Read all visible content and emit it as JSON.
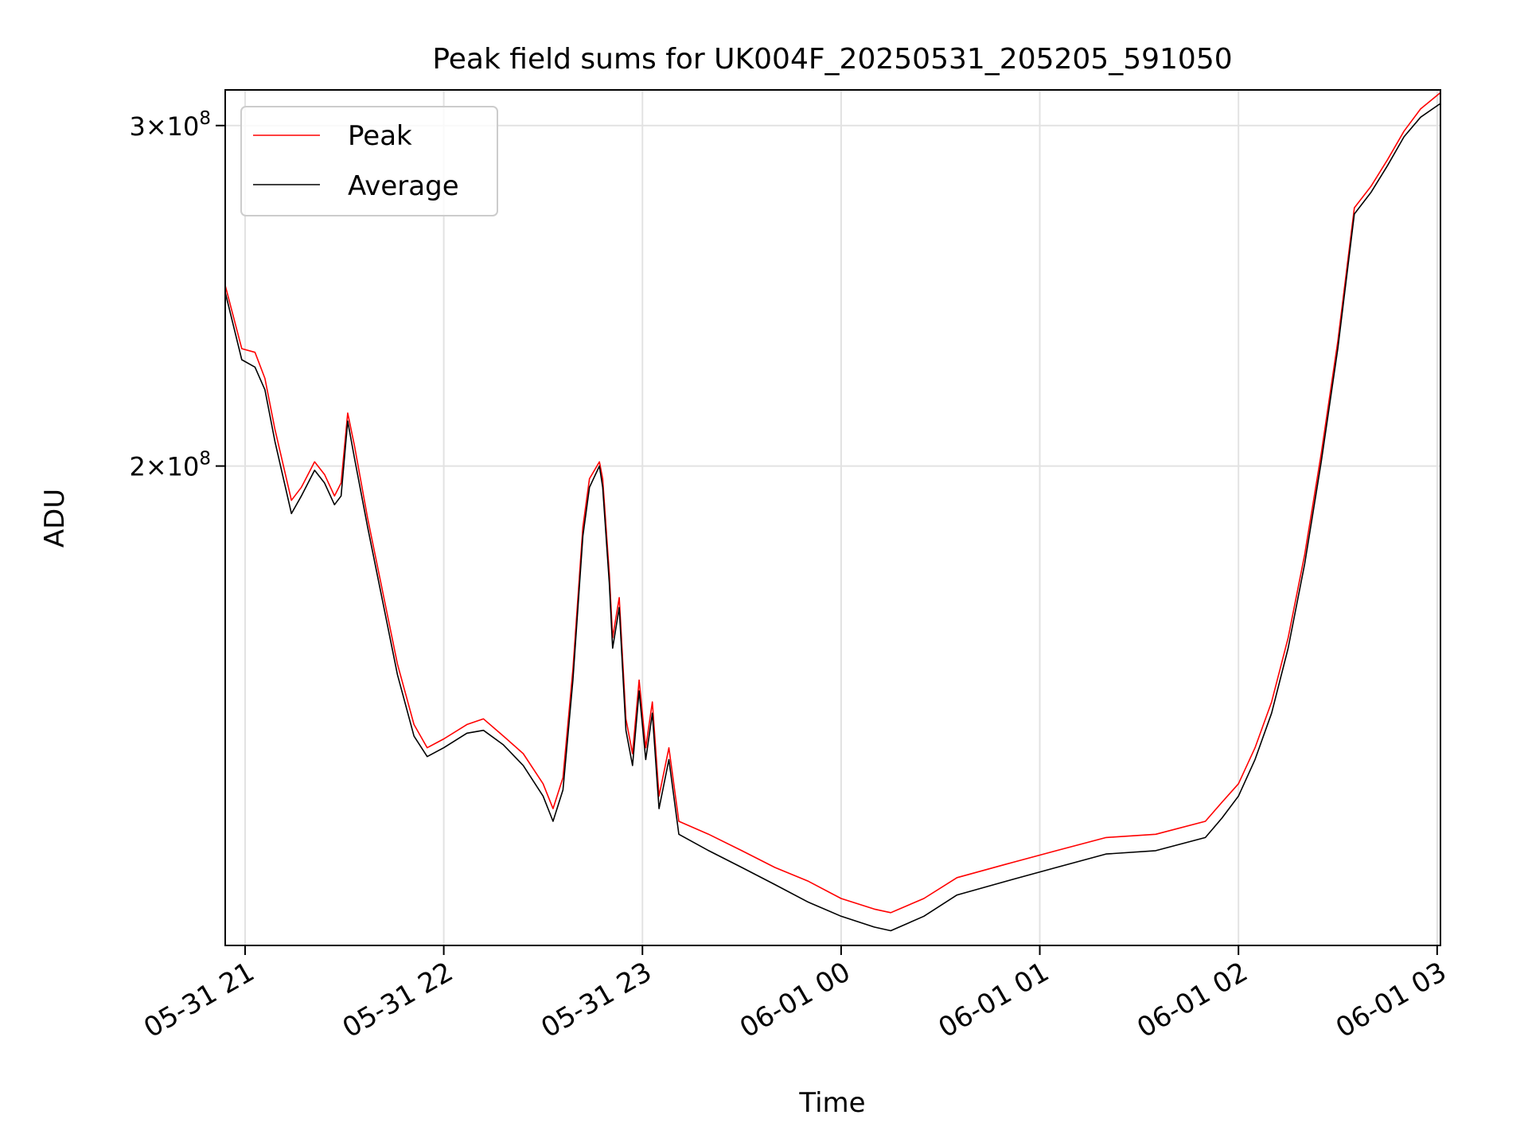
{
  "chart_data": {
    "type": "line",
    "title": "Peak field sums for UK004F_20250531_205205_591050",
    "xlabel": "Time",
    "ylabel": "ADU",
    "x_range": [
      "2025-05-31 20:54",
      "2025-06-01 03:01"
    ],
    "ylim": [
      113000000,
      313000000
    ],
    "yscale": "log",
    "grid": true,
    "legend_position": "upper left",
    "x_ticks": [
      {
        "value": "2025-05-31 21:00",
        "label": "05-31 21"
      },
      {
        "value": "2025-05-31 22:00",
        "label": "05-31 22"
      },
      {
        "value": "2025-05-31 23:00",
        "label": "05-31 23"
      },
      {
        "value": "2025-06-01 00:00",
        "label": "06-01 00"
      },
      {
        "value": "2025-06-01 01:00",
        "label": "06-01 01"
      },
      {
        "value": "2025-06-01 02:00",
        "label": "06-01 02"
      },
      {
        "value": "2025-06-01 03:00",
        "label": "06-01 03"
      }
    ],
    "y_ticks": [
      {
        "value": 200000000,
        "mantissa": "2",
        "base": "10",
        "exponent": "8"
      },
      {
        "value": 300000000,
        "mantissa": "3",
        "base": "10",
        "exponent": "8"
      }
    ],
    "series": [
      {
        "name": "Peak",
        "color": "#ff0000",
        "points": [
          [
            "2025-05-31 20:54",
            248000000.0
          ],
          [
            "2025-05-31 20:59",
            230000000.0
          ],
          [
            "2025-05-31 21:03",
            229000000.0
          ],
          [
            "2025-05-31 21:06",
            222000000.0
          ],
          [
            "2025-05-31 21:09",
            209000000.0
          ],
          [
            "2025-05-31 21:14",
            192000000.0
          ],
          [
            "2025-05-31 21:17",
            195000000.0
          ],
          [
            "2025-05-31 21:21",
            201000000.0
          ],
          [
            "2025-05-31 21:24",
            198000000.0
          ],
          [
            "2025-05-31 21:27",
            193000000.0
          ],
          [
            "2025-05-31 21:29",
            196000000.0
          ],
          [
            "2025-05-31 21:31",
            213000000.0
          ],
          [
            "2025-05-31 21:33",
            205000000.0
          ],
          [
            "2025-05-31 21:37",
            188000000.0
          ],
          [
            "2025-05-31 21:41",
            174000000.0
          ],
          [
            "2025-05-31 21:46",
            158000000.0
          ],
          [
            "2025-05-31 21:51",
            147000000.0
          ],
          [
            "2025-05-31 21:55",
            143000000.0
          ],
          [
            "2025-05-31 22:00",
            144500000.0
          ],
          [
            "2025-05-31 22:07",
            147000000.0
          ],
          [
            "2025-05-31 22:12",
            148000000.0
          ],
          [
            "2025-05-31 22:18",
            145000000.0
          ],
          [
            "2025-05-31 22:24",
            142000000.0
          ],
          [
            "2025-05-31 22:30",
            137000000.0
          ],
          [
            "2025-05-31 22:33",
            133000000.0
          ],
          [
            "2025-05-31 22:36",
            138000000.0
          ],
          [
            "2025-05-31 22:39",
            157000000.0
          ],
          [
            "2025-05-31 22:42",
            186000000.0
          ],
          [
            "2025-05-31 22:44",
            197000000.0
          ],
          [
            "2025-05-31 22:47",
            201000000.0
          ],
          [
            "2025-05-31 22:48",
            197000000.0
          ],
          [
            "2025-05-31 22:50",
            176000000.0
          ],
          [
            "2025-05-31 22:51",
            163000000.0
          ],
          [
            "2025-05-31 22:53",
            171000000.0
          ],
          [
            "2025-05-31 22:55",
            148000000.0
          ],
          [
            "2025-05-31 22:57",
            142000000.0
          ],
          [
            "2025-05-31 22:59",
            155000000.0
          ],
          [
            "2025-05-31 23:01",
            143000000.0
          ],
          [
            "2025-05-31 23:03",
            151000000.0
          ],
          [
            "2025-05-31 23:05",
            135000000.0
          ],
          [
            "2025-05-31 23:08",
            143000000.0
          ],
          [
            "2025-05-31 23:11",
            131000000.0
          ],
          [
            "2025-05-31 23:20",
            129000000.0
          ],
          [
            "2025-05-31 23:30",
            126500000.0
          ],
          [
            "2025-05-31 23:40",
            124000000.0
          ],
          [
            "2025-05-31 23:50",
            122000000.0
          ],
          [
            "2025-06-01 00:00",
            119500000.0
          ],
          [
            "2025-06-01 00:10",
            118000000.0
          ],
          [
            "2025-06-01 00:15",
            117500000.0
          ],
          [
            "2025-06-01 00:25",
            119500000.0
          ],
          [
            "2025-06-01 00:35",
            122500000.0
          ],
          [
            "2025-06-01 00:50",
            124500000.0
          ],
          [
            "2025-06-01 01:05",
            126500000.0
          ],
          [
            "2025-06-01 01:20",
            128500000.0
          ],
          [
            "2025-06-01 01:35",
            129000000.0
          ],
          [
            "2025-06-01 01:50",
            131000000.0
          ],
          [
            "2025-06-01 01:55",
            134000000.0
          ],
          [
            "2025-06-01 02:00",
            137000000.0
          ],
          [
            "2025-06-01 02:05",
            143000000.0
          ],
          [
            "2025-06-01 02:10",
            151000000.0
          ],
          [
            "2025-06-01 02:15",
            163000000.0
          ],
          [
            "2025-06-01 02:20",
            180000000.0
          ],
          [
            "2025-06-01 02:25",
            203000000.0
          ],
          [
            "2025-06-01 02:30",
            232000000.0
          ],
          [
            "2025-06-01 02:35",
            272000000.0
          ],
          [
            "2025-06-01 02:40",
            279000000.0
          ],
          [
            "2025-06-01 02:45",
            288000000.0
          ],
          [
            "2025-06-01 02:50",
            298000000.0
          ],
          [
            "2025-06-01 02:55",
            306000000.0
          ],
          [
            "2025-06-01 03:01",
            312000000.0
          ]
        ]
      },
      {
        "name": "Average",
        "color": "#000000",
        "points": [
          [
            "2025-05-31 20:54",
            246000000.0
          ],
          [
            "2025-05-31 20:59",
            227000000.0
          ],
          [
            "2025-05-31 21:03",
            225000000.0
          ],
          [
            "2025-05-31 21:06",
            219000000.0
          ],
          [
            "2025-05-31 21:09",
            206000000.0
          ],
          [
            "2025-05-31 21:14",
            189000000.0
          ],
          [
            "2025-05-31 21:17",
            193000000.0
          ],
          [
            "2025-05-31 21:21",
            199000000.0
          ],
          [
            "2025-05-31 21:24",
            196000000.0
          ],
          [
            "2025-05-31 21:27",
            191000000.0
          ],
          [
            "2025-05-31 21:29",
            193000000.0
          ],
          [
            "2025-05-31 21:31",
            211000000.0
          ],
          [
            "2025-05-31 21:33",
            202000000.0
          ],
          [
            "2025-05-31 21:37",
            186000000.0
          ],
          [
            "2025-05-31 21:41",
            172000000.0
          ],
          [
            "2025-05-31 21:46",
            156000000.0
          ],
          [
            "2025-05-31 21:51",
            145000000.0
          ],
          [
            "2025-05-31 21:55",
            141500000.0
          ],
          [
            "2025-05-31 22:00",
            143000000.0
          ],
          [
            "2025-05-31 22:07",
            145500000.0
          ],
          [
            "2025-05-31 22:12",
            146000000.0
          ],
          [
            "2025-05-31 22:18",
            143500000.0
          ],
          [
            "2025-05-31 22:24",
            140000000.0
          ],
          [
            "2025-05-31 22:30",
            135000000.0
          ],
          [
            "2025-05-31 22:33",
            131000000.0
          ],
          [
            "2025-05-31 22:36",
            136000000.0
          ],
          [
            "2025-05-31 22:39",
            155000000.0
          ],
          [
            "2025-05-31 22:42",
            184000000.0
          ],
          [
            "2025-05-31 22:44",
            195000000.0
          ],
          [
            "2025-05-31 22:47",
            200000000.0
          ],
          [
            "2025-05-31 22:48",
            195000000.0
          ],
          [
            "2025-05-31 22:50",
            174000000.0
          ],
          [
            "2025-05-31 22:51",
            161000000.0
          ],
          [
            "2025-05-31 22:53",
            169000000.0
          ],
          [
            "2025-05-31 22:55",
            146000000.0
          ],
          [
            "2025-05-31 22:57",
            140000000.0
          ],
          [
            "2025-05-31 22:59",
            153000000.0
          ],
          [
            "2025-05-31 23:01",
            141000000.0
          ],
          [
            "2025-05-31 23:03",
            149000000.0
          ],
          [
            "2025-05-31 23:05",
            133000000.0
          ],
          [
            "2025-05-31 23:08",
            141000000.0
          ],
          [
            "2025-05-31 23:11",
            129000000.0
          ],
          [
            "2025-05-31 23:20",
            126500000.0
          ],
          [
            "2025-05-31 23:30",
            124000000.0
          ],
          [
            "2025-05-31 23:40",
            121500000.0
          ],
          [
            "2025-05-31 23:50",
            119000000.0
          ],
          [
            "2025-06-01 00:00",
            117000000.0
          ],
          [
            "2025-06-01 00:10",
            115500000.0
          ],
          [
            "2025-06-01 00:15",
            115000000.0
          ],
          [
            "2025-06-01 00:25",
            117000000.0
          ],
          [
            "2025-06-01 00:35",
            120000000.0
          ],
          [
            "2025-06-01 00:50",
            122000000.0
          ],
          [
            "2025-06-01 01:05",
            124000000.0
          ],
          [
            "2025-06-01 01:20",
            126000000.0
          ],
          [
            "2025-06-01 01:35",
            126500000.0
          ],
          [
            "2025-06-01 01:50",
            128500000.0
          ],
          [
            "2025-06-01 01:55",
            131500000.0
          ],
          [
            "2025-06-01 02:00",
            135000000.0
          ],
          [
            "2025-06-01 02:05",
            141000000.0
          ],
          [
            "2025-06-01 02:10",
            149000000.0
          ],
          [
            "2025-06-01 02:15",
            161000000.0
          ],
          [
            "2025-06-01 02:20",
            178000000.0
          ],
          [
            "2025-06-01 02:25",
            201000000.0
          ],
          [
            "2025-06-01 02:30",
            230000000.0
          ],
          [
            "2025-06-01 02:35",
            270000000.0
          ],
          [
            "2025-06-01 02:40",
            277000000.0
          ],
          [
            "2025-06-01 02:45",
            286000000.0
          ],
          [
            "2025-06-01 02:50",
            296000000.0
          ],
          [
            "2025-06-01 02:55",
            303000000.0
          ],
          [
            "2025-06-01 03:01",
            308000000.0
          ]
        ]
      }
    ]
  }
}
